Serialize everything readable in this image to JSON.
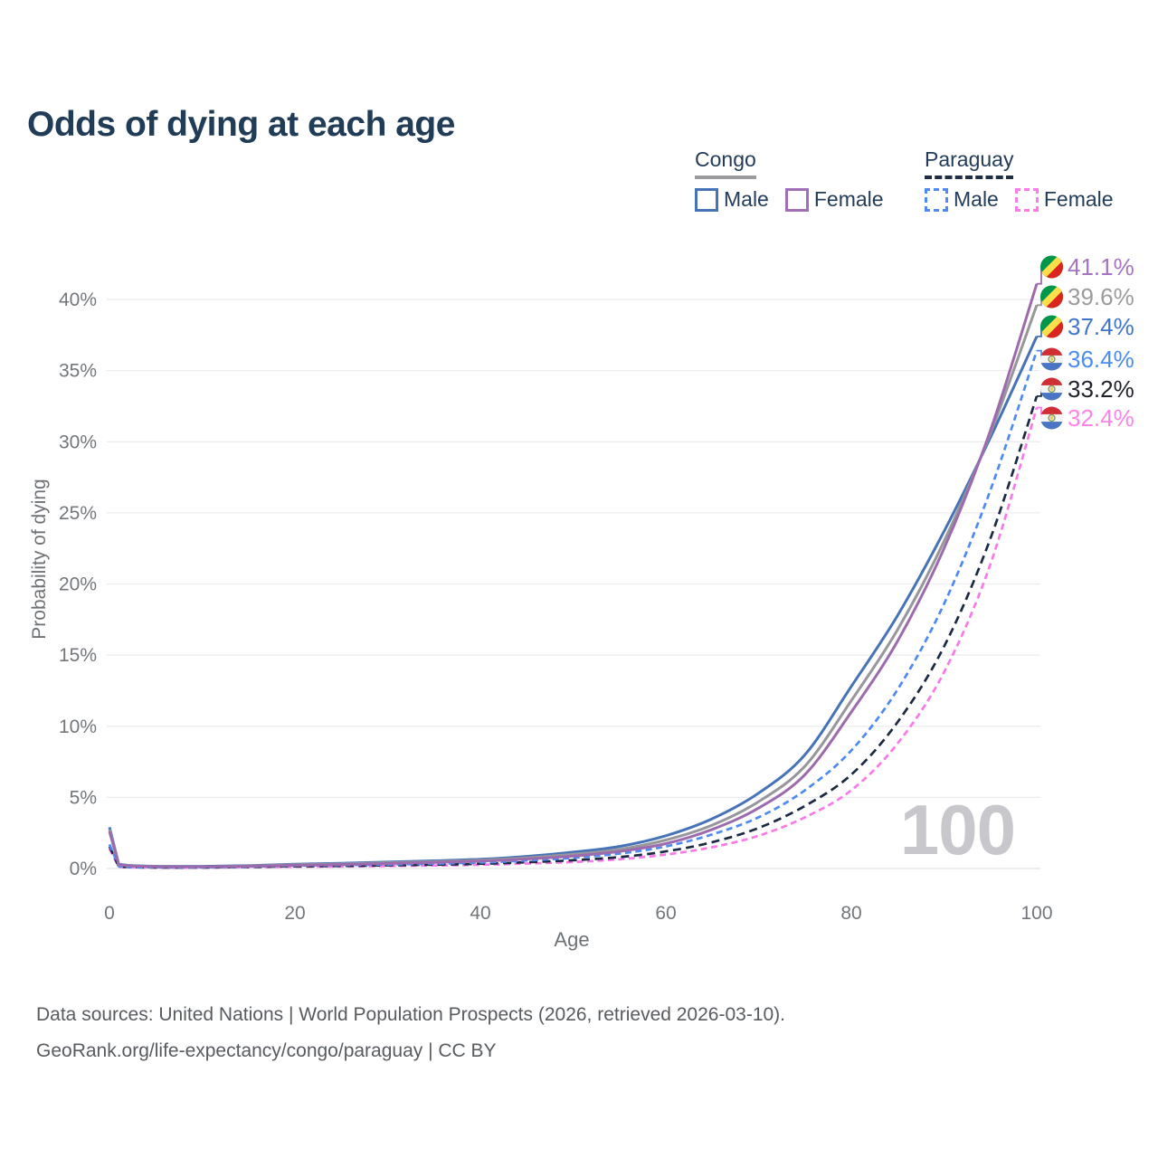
{
  "title": "Odds of dying at each age",
  "legend": {
    "groups": [
      {
        "label": "Congo",
        "line_style": "solid",
        "items": [
          {
            "label": "Male",
            "color": "#4673b8"
          },
          {
            "label": "Female",
            "color": "#a06fb8"
          }
        ]
      },
      {
        "label": "Paraguay",
        "line_style": "dashed",
        "items": [
          {
            "label": "Male",
            "color": "#4f8af2"
          },
          {
            "label": "Female",
            "color": "#fb7ce6"
          }
        ]
      }
    ]
  },
  "watermark_age": "100",
  "footer": {
    "line1": "Data sources: United Nations | World Population Prospects (2026, retrieved 2026-03-10).",
    "line2": "GeoRank.org/life-expectancy/congo/paraguay | CC BY"
  },
  "chart_data": {
    "type": "line",
    "title": "Odds of dying at each age",
    "xlabel": "Age",
    "ylabel": "Probability of dying",
    "x_ticks": [
      0,
      20,
      40,
      60,
      80,
      100
    ],
    "y_ticks_percent": [
      0,
      5,
      10,
      15,
      20,
      25,
      30,
      35,
      40
    ],
    "xlim": [
      0,
      100
    ],
    "ylim_percent": [
      0,
      42
    ],
    "grid": "horizontal",
    "legend_position": "top-right",
    "hovered_x_value": "100",
    "ages": [
      0,
      1,
      2,
      5,
      10,
      15,
      20,
      25,
      30,
      35,
      40,
      45,
      50,
      55,
      60,
      65,
      70,
      75,
      80,
      85,
      90,
      95,
      100
    ],
    "series": [
      {
        "id": "congo-female",
        "name": "Congo Female",
        "country": "Congo",
        "sex": "Female",
        "color": "#9d6bad",
        "label_color": "#a674c4",
        "dashed": false,
        "flag": "congo",
        "end_label": "41.1%",
        "values": [
          2.6,
          0.26,
          0.2,
          0.13,
          0.12,
          0.16,
          0.22,
          0.28,
          0.35,
          0.43,
          0.52,
          0.67,
          0.88,
          1.2,
          1.75,
          2.75,
          4.25,
          6.6,
          11.0,
          16.0,
          22.5,
          30.8,
          41.1
        ]
      },
      {
        "id": "congo-all",
        "name": "Congo Both sexes",
        "country": "Congo",
        "sex": "Both",
        "color": "#97979b",
        "label_color": "#9b9b9e",
        "dashed": false,
        "flag": "congo",
        "end_label": "39.6%",
        "values": [
          2.75,
          0.28,
          0.21,
          0.14,
          0.13,
          0.18,
          0.26,
          0.32,
          0.4,
          0.48,
          0.58,
          0.75,
          1.0,
          1.35,
          2.0,
          3.05,
          4.7,
          7.2,
          11.8,
          16.8,
          23.0,
          30.6,
          39.6
        ]
      },
      {
        "id": "congo-male",
        "name": "Congo Male",
        "country": "Congo",
        "sex": "Male",
        "color": "#4673b8",
        "label_color": "#4076c8",
        "dashed": false,
        "flag": "congo",
        "end_label": "37.4%",
        "values": [
          2.9,
          0.3,
          0.22,
          0.16,
          0.15,
          0.2,
          0.3,
          0.37,
          0.45,
          0.54,
          0.65,
          0.85,
          1.15,
          1.55,
          2.3,
          3.5,
          5.3,
          8.0,
          12.8,
          17.8,
          23.7,
          30.3,
          37.4
        ]
      },
      {
        "id": "paraguay-male",
        "name": "Paraguay Male",
        "country": "Paraguay",
        "sex": "Male",
        "color": "#4f8af2",
        "label_color": "#4b8cf0",
        "dashed": true,
        "flag": "paraguay",
        "end_label": "36.4%",
        "values": [
          1.7,
          0.15,
          0.11,
          0.08,
          0.08,
          0.13,
          0.2,
          0.24,
          0.28,
          0.34,
          0.42,
          0.56,
          0.75,
          1.05,
          1.55,
          2.4,
          3.6,
          5.5,
          8.3,
          12.6,
          18.6,
          26.6,
          36.4
        ]
      },
      {
        "id": "paraguay-all",
        "name": "Paraguay Both sexes",
        "country": "Paraguay",
        "sex": "Both",
        "color": "#1b2a42",
        "label_color": "#20222c",
        "dashed": true,
        "flag": "paraguay",
        "end_label": "33.2%",
        "values": [
          1.55,
          0.13,
          0.1,
          0.07,
          0.07,
          0.11,
          0.15,
          0.18,
          0.22,
          0.27,
          0.33,
          0.44,
          0.58,
          0.8,
          1.2,
          1.85,
          2.85,
          4.4,
          6.6,
          10.3,
          15.6,
          23.2,
          33.2
        ]
      },
      {
        "id": "paraguay-female",
        "name": "Paraguay Female",
        "country": "Paraguay",
        "sex": "Female",
        "color": "#f97ae6",
        "label_color": "#fb84e8",
        "dashed": true,
        "flag": "paraguay",
        "end_label": "32.4%",
        "values": [
          1.4,
          0.11,
          0.09,
          0.06,
          0.06,
          0.09,
          0.12,
          0.14,
          0.17,
          0.21,
          0.26,
          0.35,
          0.46,
          0.65,
          0.98,
          1.5,
          2.3,
          3.6,
          5.5,
          8.8,
          13.8,
          21.4,
          32.4
        ]
      }
    ],
    "flag_colors": {
      "congo": {
        "green": "#00964a",
        "yellow": "#fbde4a",
        "red": "#dc241f"
      },
      "paraguay": {
        "red": "#cf2e35",
        "white": "#f4f4f4",
        "blue": "#4a74c4",
        "emblem_ring": "#7f9a4d",
        "emblem_center": "#f2c43c"
      }
    }
  }
}
